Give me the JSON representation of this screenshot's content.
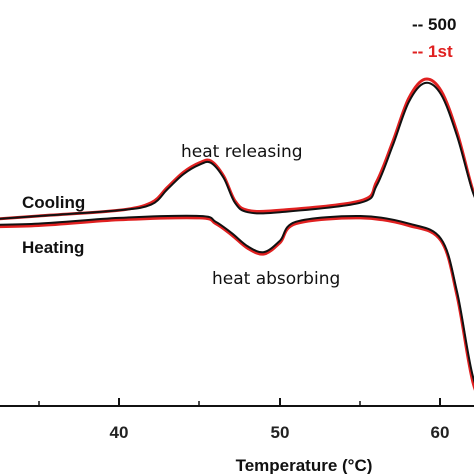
{
  "chart_data": {
    "type": "line",
    "title": "",
    "xlabel": "Temperature (°C)",
    "ylabel": "",
    "xlim": [
      30,
      63
    ],
    "ylim": [
      -1.2,
      1.0
    ],
    "x_ticks": [
      40,
      50,
      60
    ],
    "grid": false,
    "legend": {
      "placement": "top-right",
      "entries": [
        {
          "label": "-- 500",
          "color": "#111111"
        },
        {
          "label": "-- 1st",
          "color": "#e02020"
        }
      ]
    },
    "curve_labels": {
      "cooling": "Cooling",
      "heating": "Heating"
    },
    "annotations": [
      {
        "text": "heat releasing",
        "x": 47,
        "y": 0.46
      },
      {
        "text": "heat absorbing",
        "x": 52.5,
        "y": -0.38
      }
    ],
    "series": [
      {
        "name": "Cooling - 500",
        "color": "#111111",
        "x": [
          30,
          35,
          40,
          42,
          43,
          44,
          45,
          45.7,
          46.5,
          47.2,
          48,
          50,
          55,
          56,
          57,
          58,
          59,
          60,
          61,
          62,
          62.6,
          63
        ],
        "y": [
          -0.03,
          0.0,
          0.03,
          0.06,
          0.14,
          0.22,
          0.27,
          0.28,
          0.2,
          0.07,
          0.02,
          0.02,
          0.07,
          0.16,
          0.37,
          0.6,
          0.7,
          0.64,
          0.42,
          0.12,
          0.04,
          0.04
        ]
      },
      {
        "name": "Cooling - 1st",
        "color": "#e02020",
        "x": [
          30,
          35,
          40,
          42,
          43,
          44,
          45,
          45.7,
          46.5,
          47.2,
          48,
          50,
          55,
          56,
          57,
          58,
          59,
          60,
          61,
          62,
          62.6,
          63
        ],
        "y": [
          -0.03,
          0.0,
          0.03,
          0.07,
          0.15,
          0.23,
          0.28,
          0.29,
          0.21,
          0.08,
          0.03,
          0.03,
          0.08,
          0.18,
          0.39,
          0.62,
          0.72,
          0.66,
          0.44,
          0.13,
          0.05,
          0.05
        ]
      },
      {
        "name": "Heating - 500",
        "color": "#111111",
        "x": [
          30,
          35,
          40,
          45,
          46,
          47,
          48,
          49,
          50,
          51,
          55,
          58,
          60,
          61,
          62,
          63
        ],
        "y": [
          -0.05,
          -0.04,
          -0.01,
          0.0,
          -0.03,
          -0.09,
          -0.16,
          -0.19,
          -0.13,
          -0.03,
          0.0,
          -0.04,
          -0.12,
          -0.4,
          -0.85,
          -1.02
        ]
      },
      {
        "name": "Heating - 1st",
        "color": "#e02020",
        "x": [
          30,
          35,
          40,
          45,
          46,
          47,
          48,
          49,
          50,
          51,
          55,
          58,
          60,
          61,
          62,
          63
        ],
        "y": [
          -0.06,
          -0.05,
          -0.02,
          -0.01,
          -0.04,
          -0.1,
          -0.17,
          -0.2,
          -0.14,
          -0.04,
          -0.01,
          -0.05,
          -0.13,
          -0.42,
          -0.88,
          -1.05
        ]
      }
    ]
  }
}
